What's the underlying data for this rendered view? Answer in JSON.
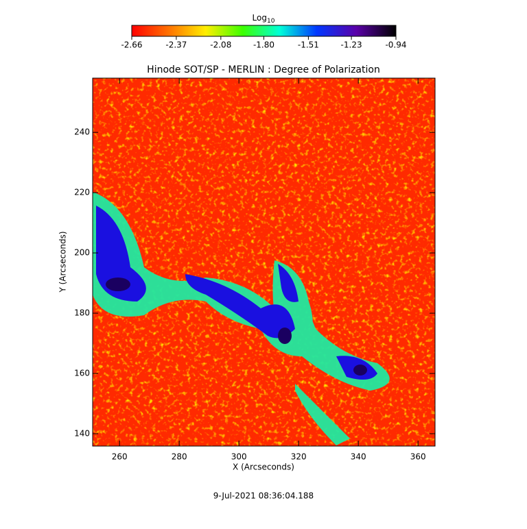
{
  "chart_data": {
    "type": "heatmap",
    "title": "Hinode SOT/SP - MERLIN : Degree of Polarization",
    "x_label": "X (Arcseconds)",
    "y_label": "Y (Arcseconds)",
    "footer": "9-Jul-2021 08:36:04.188",
    "colorbar": {
      "label": "Log",
      "label_sub": "10",
      "clim": [
        -2.66,
        -0.94
      ],
      "ticks": [
        -2.66,
        -2.37,
        -2.08,
        {
          "value": -1.8,
          "label": "-1.80"
        },
        -1.51,
        -1.23,
        -0.94
      ]
    },
    "xlim": [
      251,
      365.7
    ],
    "xticks": [
      260,
      280,
      300,
      320,
      340,
      360
    ],
    "ylim": [
      135.9,
      258
    ],
    "yticks": [
      140,
      160,
      180,
      200,
      220,
      240
    ]
  }
}
